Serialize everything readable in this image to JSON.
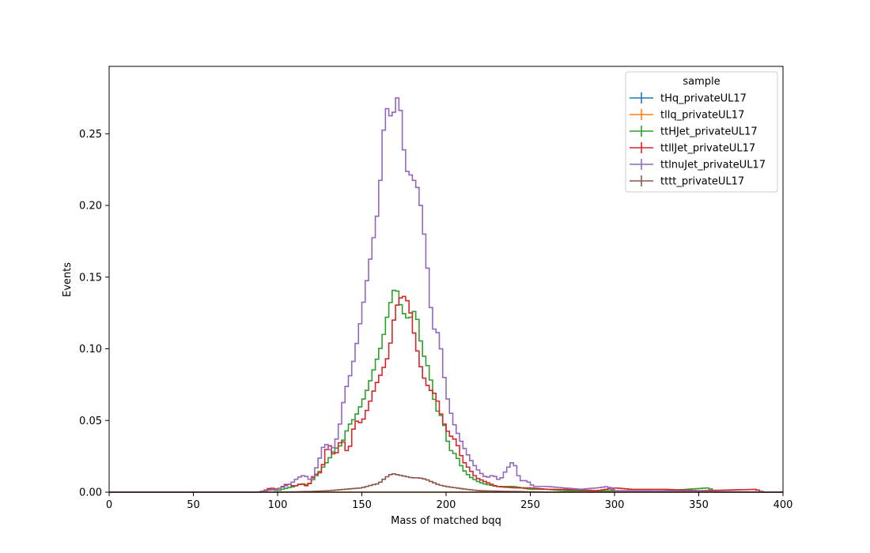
{
  "chart_data": {
    "type": "line",
    "title": "",
    "xlabel": "Mass of matched bqq",
    "ylabel": "Events",
    "xlim": [
      0,
      400
    ],
    "ylim": [
      0,
      0.297
    ],
    "xticks": [
      "0",
      "50",
      "100",
      "150",
      "200",
      "250",
      "300",
      "350",
      "400"
    ],
    "yticks": [
      "0.00",
      "0.05",
      "0.10",
      "0.15",
      "0.20",
      "0.25"
    ],
    "grid": false,
    "legend": {
      "title": "sample",
      "placement": "top-right"
    },
    "bin_width": 2,
    "series": [
      {
        "name": "tHq_privateUL17",
        "color": "#1f77b4",
        "points": [
          [
            0,
            0
          ],
          [
            400,
            0
          ]
        ]
      },
      {
        "name": "tllq_privateUL17",
        "color": "#ff7f0e",
        "points": [
          [
            0,
            0
          ],
          [
            400,
            0
          ]
        ]
      },
      {
        "name": "ttHJet_privateUL17",
        "color": "#2ca02c",
        "points": [
          [
            0,
            0
          ],
          [
            90,
            0
          ],
          [
            96,
            0.002
          ],
          [
            100,
            0.001
          ],
          [
            106,
            0.003
          ],
          [
            110,
            0.004
          ],
          [
            114,
            0.006
          ],
          [
            118,
            0.005
          ],
          [
            122,
            0.01
          ],
          [
            126,
            0.016
          ],
          [
            130,
            0.022
          ],
          [
            134,
            0.03
          ],
          [
            138,
            0.033
          ],
          [
            142,
            0.046
          ],
          [
            146,
            0.052
          ],
          [
            150,
            0.062
          ],
          [
            154,
            0.074
          ],
          [
            158,
            0.089
          ],
          [
            162,
            0.104
          ],
          [
            166,
            0.128
          ],
          [
            170,
            0.145
          ],
          [
            174,
            0.126
          ],
          [
            178,
            0.12
          ],
          [
            182,
            0.128
          ],
          [
            186,
            0.098
          ],
          [
            190,
            0.085
          ],
          [
            194,
            0.058
          ],
          [
            198,
            0.052
          ],
          [
            202,
            0.03
          ],
          [
            206,
            0.026
          ],
          [
            210,
            0.016
          ],
          [
            214,
            0.011
          ],
          [
            218,
            0.008
          ],
          [
            222,
            0.006
          ],
          [
            226,
            0.005
          ],
          [
            230,
            0.004
          ],
          [
            240,
            0.004
          ],
          [
            250,
            0.002
          ],
          [
            260,
            0.002
          ],
          [
            270,
            0.001
          ],
          [
            300,
            0.001
          ],
          [
            330,
            0.001
          ],
          [
            356,
            0.003
          ],
          [
            360,
            0
          ],
          [
            400,
            0
          ]
        ]
      },
      {
        "name": "ttllJet_privateUL17",
        "color": "#d62728",
        "points": [
          [
            0,
            0
          ],
          [
            90,
            0
          ],
          [
            96,
            0.003
          ],
          [
            100,
            0.002
          ],
          [
            106,
            0.006
          ],
          [
            110,
            0.004
          ],
          [
            114,
            0.006
          ],
          [
            118,
            0.004
          ],
          [
            122,
            0.012
          ],
          [
            126,
            0.014
          ],
          [
            130,
            0.035
          ],
          [
            134,
            0.024
          ],
          [
            138,
            0.038
          ],
          [
            142,
            0.026
          ],
          [
            146,
            0.05
          ],
          [
            150,
            0.048
          ],
          [
            154,
            0.06
          ],
          [
            158,
            0.074
          ],
          [
            162,
            0.084
          ],
          [
            166,
            0.096
          ],
          [
            170,
            0.128
          ],
          [
            174,
            0.138
          ],
          [
            178,
            0.132
          ],
          [
            182,
            0.104
          ],
          [
            186,
            0.082
          ],
          [
            190,
            0.072
          ],
          [
            194,
            0.068
          ],
          [
            198,
            0.05
          ],
          [
            202,
            0.04
          ],
          [
            206,
            0.036
          ],
          [
            210,
            0.022
          ],
          [
            214,
            0.016
          ],
          [
            218,
            0.01
          ],
          [
            222,
            0.008
          ],
          [
            226,
            0.006
          ],
          [
            230,
            0.004
          ],
          [
            240,
            0.003
          ],
          [
            250,
            0.003
          ],
          [
            260,
            0.002
          ],
          [
            270,
            0.002
          ],
          [
            290,
            0.001
          ],
          [
            300,
            0.003
          ],
          [
            310,
            0.002
          ],
          [
            330,
            0.002
          ],
          [
            350,
            0.001
          ],
          [
            384,
            0.002
          ],
          [
            388,
            0
          ],
          [
            400,
            0
          ]
        ]
      },
      {
        "name": "ttlnuJet_privateUL17",
        "color": "#9467bd",
        "points": [
          [
            0,
            0
          ],
          [
            88,
            0
          ],
          [
            92,
            0.001
          ],
          [
            100,
            0.002
          ],
          [
            104,
            0.004
          ],
          [
            108,
            0.006
          ],
          [
            112,
            0.01
          ],
          [
            116,
            0.012
          ],
          [
            120,
            0.008
          ],
          [
            124,
            0.02
          ],
          [
            128,
            0.035
          ],
          [
            132,
            0.028
          ],
          [
            136,
            0.04
          ],
          [
            140,
            0.07
          ],
          [
            144,
            0.085
          ],
          [
            148,
            0.11
          ],
          [
            152,
            0.14
          ],
          [
            156,
            0.17
          ],
          [
            160,
            0.2
          ],
          [
            164,
            0.27
          ],
          [
            168,
            0.26
          ],
          [
            172,
            0.28
          ],
          [
            176,
            0.225
          ],
          [
            180,
            0.22
          ],
          [
            184,
            0.21
          ],
          [
            188,
            0.17
          ],
          [
            192,
            0.115
          ],
          [
            196,
            0.11
          ],
          [
            200,
            0.07
          ],
          [
            204,
            0.05
          ],
          [
            208,
            0.038
          ],
          [
            212,
            0.028
          ],
          [
            216,
            0.02
          ],
          [
            220,
            0.014
          ],
          [
            224,
            0.01
          ],
          [
            228,
            0.012
          ],
          [
            232,
            0.008
          ],
          [
            236,
            0.016
          ],
          [
            240,
            0.022
          ],
          [
            244,
            0.008
          ],
          [
            248,
            0.008
          ],
          [
            252,
            0.004
          ],
          [
            260,
            0.004
          ],
          [
            270,
            0.003
          ],
          [
            280,
            0.002
          ],
          [
            290,
            0.003
          ],
          [
            296,
            0.004
          ],
          [
            300,
            0.001
          ],
          [
            310,
            0.001
          ],
          [
            320,
            0.001
          ],
          [
            400,
            0
          ]
        ]
      },
      {
        "name": "tttt_privateUL17",
        "color": "#8c564b",
        "points": [
          [
            0,
            0
          ],
          [
            100,
            0
          ],
          [
            120,
            0.0005
          ],
          [
            130,
            0.001
          ],
          [
            140,
            0.002
          ],
          [
            150,
            0.003
          ],
          [
            156,
            0.005
          ],
          [
            160,
            0.006
          ],
          [
            164,
            0.01
          ],
          [
            168,
            0.013
          ],
          [
            172,
            0.012
          ],
          [
            176,
            0.011
          ],
          [
            180,
            0.01
          ],
          [
            184,
            0.01
          ],
          [
            188,
            0.009
          ],
          [
            192,
            0.007
          ],
          [
            196,
            0.005
          ],
          [
            200,
            0.004
          ],
          [
            206,
            0.003
          ],
          [
            212,
            0.002
          ],
          [
            220,
            0.001
          ],
          [
            240,
            0.0005
          ],
          [
            260,
            0
          ],
          [
            400,
            0
          ]
        ]
      }
    ]
  }
}
